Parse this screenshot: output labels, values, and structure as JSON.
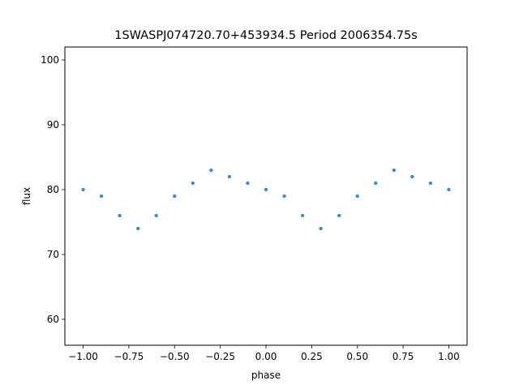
{
  "chart_data": {
    "type": "scatter",
    "title": "1SWASPJ074720.70+453934.5 Period 2006354.75s",
    "xlabel": "phase",
    "ylabel": "flux",
    "xlim": [
      -1.1,
      1.1
    ],
    "ylim": [
      56,
      102
    ],
    "xticks": [
      -1.0,
      -0.75,
      -0.5,
      -0.25,
      0.0,
      0.25,
      0.5,
      0.75,
      1.0
    ],
    "xtick_labels": [
      "−1.00",
      "−0.75",
      "−0.50",
      "−0.25",
      "0.00",
      "0.25",
      "0.50",
      "0.75",
      "1.00"
    ],
    "yticks": [
      60,
      70,
      80,
      90,
      100
    ],
    "ytick_labels": [
      "60",
      "70",
      "80",
      "90",
      "100"
    ],
    "grid": false,
    "marker_color": "#1f77b4",
    "series": [
      {
        "x": [
          -1.0,
          -0.9,
          -0.8,
          -0.7,
          -0.6,
          -0.5,
          -0.4,
          -0.3,
          -0.2,
          -0.1,
          0.0,
          0.1,
          0.2,
          0.3,
          0.4,
          0.5,
          0.6,
          0.7,
          0.8,
          0.9,
          1.0
        ],
        "y": [
          80,
          79,
          76,
          74,
          76,
          79,
          81,
          83,
          82,
          81,
          80,
          79,
          76,
          74,
          76,
          79,
          81,
          83,
          82,
          81,
          80
        ]
      }
    ]
  }
}
